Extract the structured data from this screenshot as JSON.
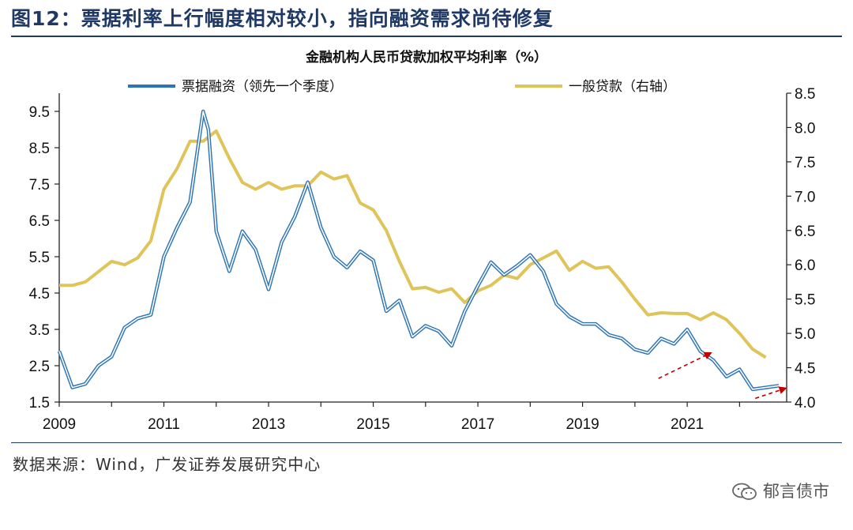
{
  "figure_title": "图12：票据利率上行幅度相对较小，指向融资需求尚待修复",
  "source_text": "数据来源：Wind，广发证券发展研究中心",
  "watermark_text": "郁言债市",
  "watermark_icon": "wechat-icon",
  "colors": {
    "bill": "#2e75b6",
    "loan": "#dfc45a",
    "arrow": "#c00000",
    "title": "#1f3864"
  },
  "chart_data": {
    "type": "line",
    "title": "金融机构人民币贷款加权平均利率（%）",
    "x_ticks": [
      "2009",
      "2011",
      "2013",
      "2015",
      "2017",
      "2019",
      "2021"
    ],
    "x_tick_values": [
      2009,
      2011,
      2013,
      2015,
      2017,
      2019,
      2021
    ],
    "xlim": [
      2009,
      2022.9
    ],
    "left_axis": {
      "ylim": [
        1.5,
        10.0
      ],
      "ticks": [
        "1.5",
        "2.5",
        "3.5",
        "4.5",
        "5.5",
        "6.5",
        "7.5",
        "8.5",
        "9.5"
      ]
    },
    "right_axis": {
      "ylim": [
        4.0,
        8.5
      ],
      "ticks": [
        "4.0",
        "4.5",
        "5.0",
        "5.5",
        "6.0",
        "6.5",
        "7.0",
        "7.5",
        "8.0",
        "8.5"
      ]
    },
    "series": [
      {
        "name": "票据融资（领先一个季度）",
        "axis": "left",
        "x": [
          2009.0,
          2009.25,
          2009.5,
          2009.75,
          2010.0,
          2010.25,
          2010.5,
          2010.75,
          2011.0,
          2011.25,
          2011.5,
          2011.75,
          2011.85,
          2012.0,
          2012.25,
          2012.5,
          2012.75,
          2013.0,
          2013.25,
          2013.5,
          2013.75,
          2014.0,
          2014.25,
          2014.5,
          2014.75,
          2015.0,
          2015.25,
          2015.5,
          2015.75,
          2016.0,
          2016.25,
          2016.5,
          2016.75,
          2017.0,
          2017.25,
          2017.5,
          2017.75,
          2018.0,
          2018.25,
          2018.5,
          2018.75,
          2019.0,
          2019.25,
          2019.5,
          2019.75,
          2020.0,
          2020.25,
          2020.5,
          2020.75,
          2021.0,
          2021.25,
          2021.5,
          2021.75,
          2022.0,
          2022.25,
          2022.5,
          2022.75
        ],
        "values": [
          2.9,
          1.9,
          2.0,
          2.5,
          2.75,
          3.55,
          3.8,
          3.9,
          5.5,
          6.3,
          7.0,
          9.5,
          9.0,
          6.2,
          5.1,
          6.2,
          5.7,
          4.6,
          5.9,
          6.6,
          7.55,
          6.3,
          5.5,
          5.2,
          5.65,
          5.4,
          4.0,
          4.3,
          3.3,
          3.6,
          3.45,
          3.05,
          4.0,
          4.7,
          5.35,
          5.0,
          5.25,
          5.55,
          5.1,
          4.2,
          3.85,
          3.65,
          3.65,
          3.35,
          3.25,
          2.95,
          2.85,
          3.25,
          3.1,
          3.5,
          2.9,
          2.65,
          2.2,
          2.4,
          1.85,
          1.9,
          1.95
        ]
      },
      {
        "name": "一般贷款（右轴）",
        "axis": "right",
        "x": [
          2009.0,
          2009.25,
          2009.5,
          2009.75,
          2010.0,
          2010.25,
          2010.5,
          2010.75,
          2011.0,
          2011.25,
          2011.5,
          2011.75,
          2012.0,
          2012.25,
          2012.5,
          2012.75,
          2013.0,
          2013.25,
          2013.5,
          2013.75,
          2014.0,
          2014.25,
          2014.5,
          2014.75,
          2015.0,
          2015.25,
          2015.5,
          2015.75,
          2016.0,
          2016.25,
          2016.5,
          2016.75,
          2017.0,
          2017.25,
          2017.5,
          2017.75,
          2018.0,
          2018.25,
          2018.5,
          2018.75,
          2019.0,
          2019.25,
          2019.5,
          2019.75,
          2020.0,
          2020.25,
          2020.5,
          2020.75,
          2021.0,
          2021.25,
          2021.5,
          2021.75,
          2022.0,
          2022.25,
          2022.5
        ],
        "values": [
          5.7,
          5.7,
          5.75,
          5.9,
          6.05,
          6.0,
          6.1,
          6.35,
          7.1,
          7.4,
          7.8,
          7.8,
          7.95,
          7.55,
          7.2,
          7.1,
          7.2,
          7.1,
          7.15,
          7.15,
          7.35,
          7.25,
          7.3,
          6.9,
          6.8,
          6.5,
          6.05,
          5.65,
          5.67,
          5.6,
          5.65,
          5.45,
          5.62,
          5.7,
          5.85,
          5.8,
          6.0,
          6.1,
          6.2,
          5.92,
          6.05,
          5.95,
          5.97,
          5.75,
          5.5,
          5.27,
          5.3,
          5.29,
          5.29,
          5.2,
          5.3,
          5.2,
          5.0,
          4.77,
          4.65
        ]
      }
    ],
    "annotations": [
      {
        "type": "arrow",
        "from": [
          2020.45,
          2.15
        ],
        "to": [
          2021.45,
          2.85
        ]
      },
      {
        "type": "arrow",
        "from": [
          2022.3,
          1.6
        ],
        "to": [
          2022.88,
          1.88
        ]
      }
    ]
  }
}
